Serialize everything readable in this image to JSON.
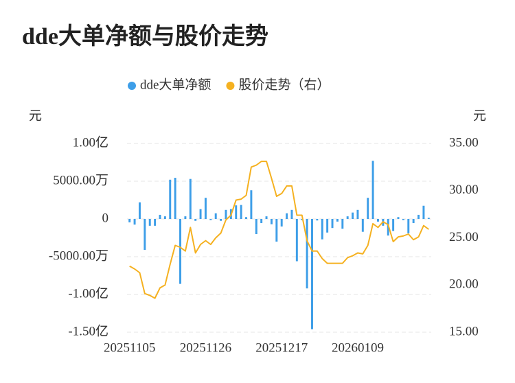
{
  "chart_data": {
    "type": "bar_line",
    "title": "dde大单净额与股价走势",
    "y_unit": "元",
    "y2_unit": "元",
    "categories": [
      "20251105",
      null,
      null,
      null,
      null,
      null,
      null,
      null,
      null,
      null,
      null,
      null,
      null,
      null,
      null,
      "20251126",
      null,
      null,
      null,
      null,
      null,
      null,
      null,
      null,
      null,
      null,
      null,
      null,
      null,
      null,
      "20251217",
      null,
      null,
      null,
      null,
      null,
      null,
      null,
      null,
      null,
      null,
      null,
      null,
      null,
      null,
      "20260109",
      null,
      null,
      null,
      null,
      null,
      null,
      null,
      null,
      null,
      null,
      null,
      null,
      null,
      null
    ],
    "series": [
      {
        "name": "dde大单净额",
        "type": "bar",
        "color": "#3d9ee8",
        "axis": "y",
        "values": [
          -450,
          -750,
          2200,
          -4100,
          -900,
          -900,
          550,
          350,
          5200,
          5450,
          -8600,
          350,
          5300,
          -250,
          1300,
          2800,
          -150,
          750,
          -250,
          1200,
          1300,
          1800,
          1850,
          250,
          3800,
          -2000,
          -550,
          350,
          -700,
          -3000,
          -1000,
          750,
          1200,
          -5600,
          -150,
          -9200,
          -14600,
          -200,
          -2700,
          -1800,
          -1200,
          -350,
          -1300,
          350,
          850,
          1200,
          -1700,
          2800,
          7700,
          -350,
          -900,
          -2200,
          -1600,
          250,
          -150,
          -1900,
          -550,
          550,
          1750,
          150
        ]
      },
      {
        "name": "股价走势（右）",
        "type": "line",
        "color": "#f5b120",
        "axis": "y2",
        "values": [
          22.0,
          21.7,
          21.3,
          19.1,
          18.9,
          18.6,
          19.7,
          20.0,
          22.2,
          24.2,
          24.0,
          23.6,
          26.1,
          23.4,
          24.3,
          24.7,
          24.3,
          25.0,
          25.5,
          26.9,
          27.4,
          29.0,
          29.1,
          29.5,
          32.5,
          32.7,
          33.1,
          33.1,
          31.3,
          29.4,
          29.7,
          30.5,
          30.5,
          27.4,
          27.4,
          24.7,
          23.6,
          23.6,
          22.8,
          22.3,
          22.3,
          22.3,
          22.3,
          22.9,
          23.1,
          23.4,
          23.3,
          24.2,
          26.5,
          26.1,
          26.7,
          26.4,
          24.6,
          25.1,
          25.2,
          25.4,
          24.8,
          25.1,
          26.3,
          25.9
        ]
      }
    ],
    "ylim": [
      -15000,
      10000
    ],
    "yticks": [
      {
        "value": 10000,
        "label": "1.00亿"
      },
      {
        "value": 5000,
        "label": "5000.00万"
      },
      0,
      {
        "value": -5000,
        "label": "-5000.00万"
      },
      {
        "value": -10000,
        "label": "-1.00亿"
      },
      {
        "value": -15000,
        "label": "-1.50亿"
      }
    ],
    "y2lim": [
      15,
      35
    ],
    "y2ticks": [
      {
        "value": 35,
        "label": "35.00"
      },
      {
        "value": 30,
        "label": "30.00"
      },
      {
        "value": 25,
        "label": "25.00"
      },
      {
        "value": 20,
        "label": "20.00"
      },
      {
        "value": 15,
        "label": "15.00"
      }
    ],
    "grid": true
  }
}
